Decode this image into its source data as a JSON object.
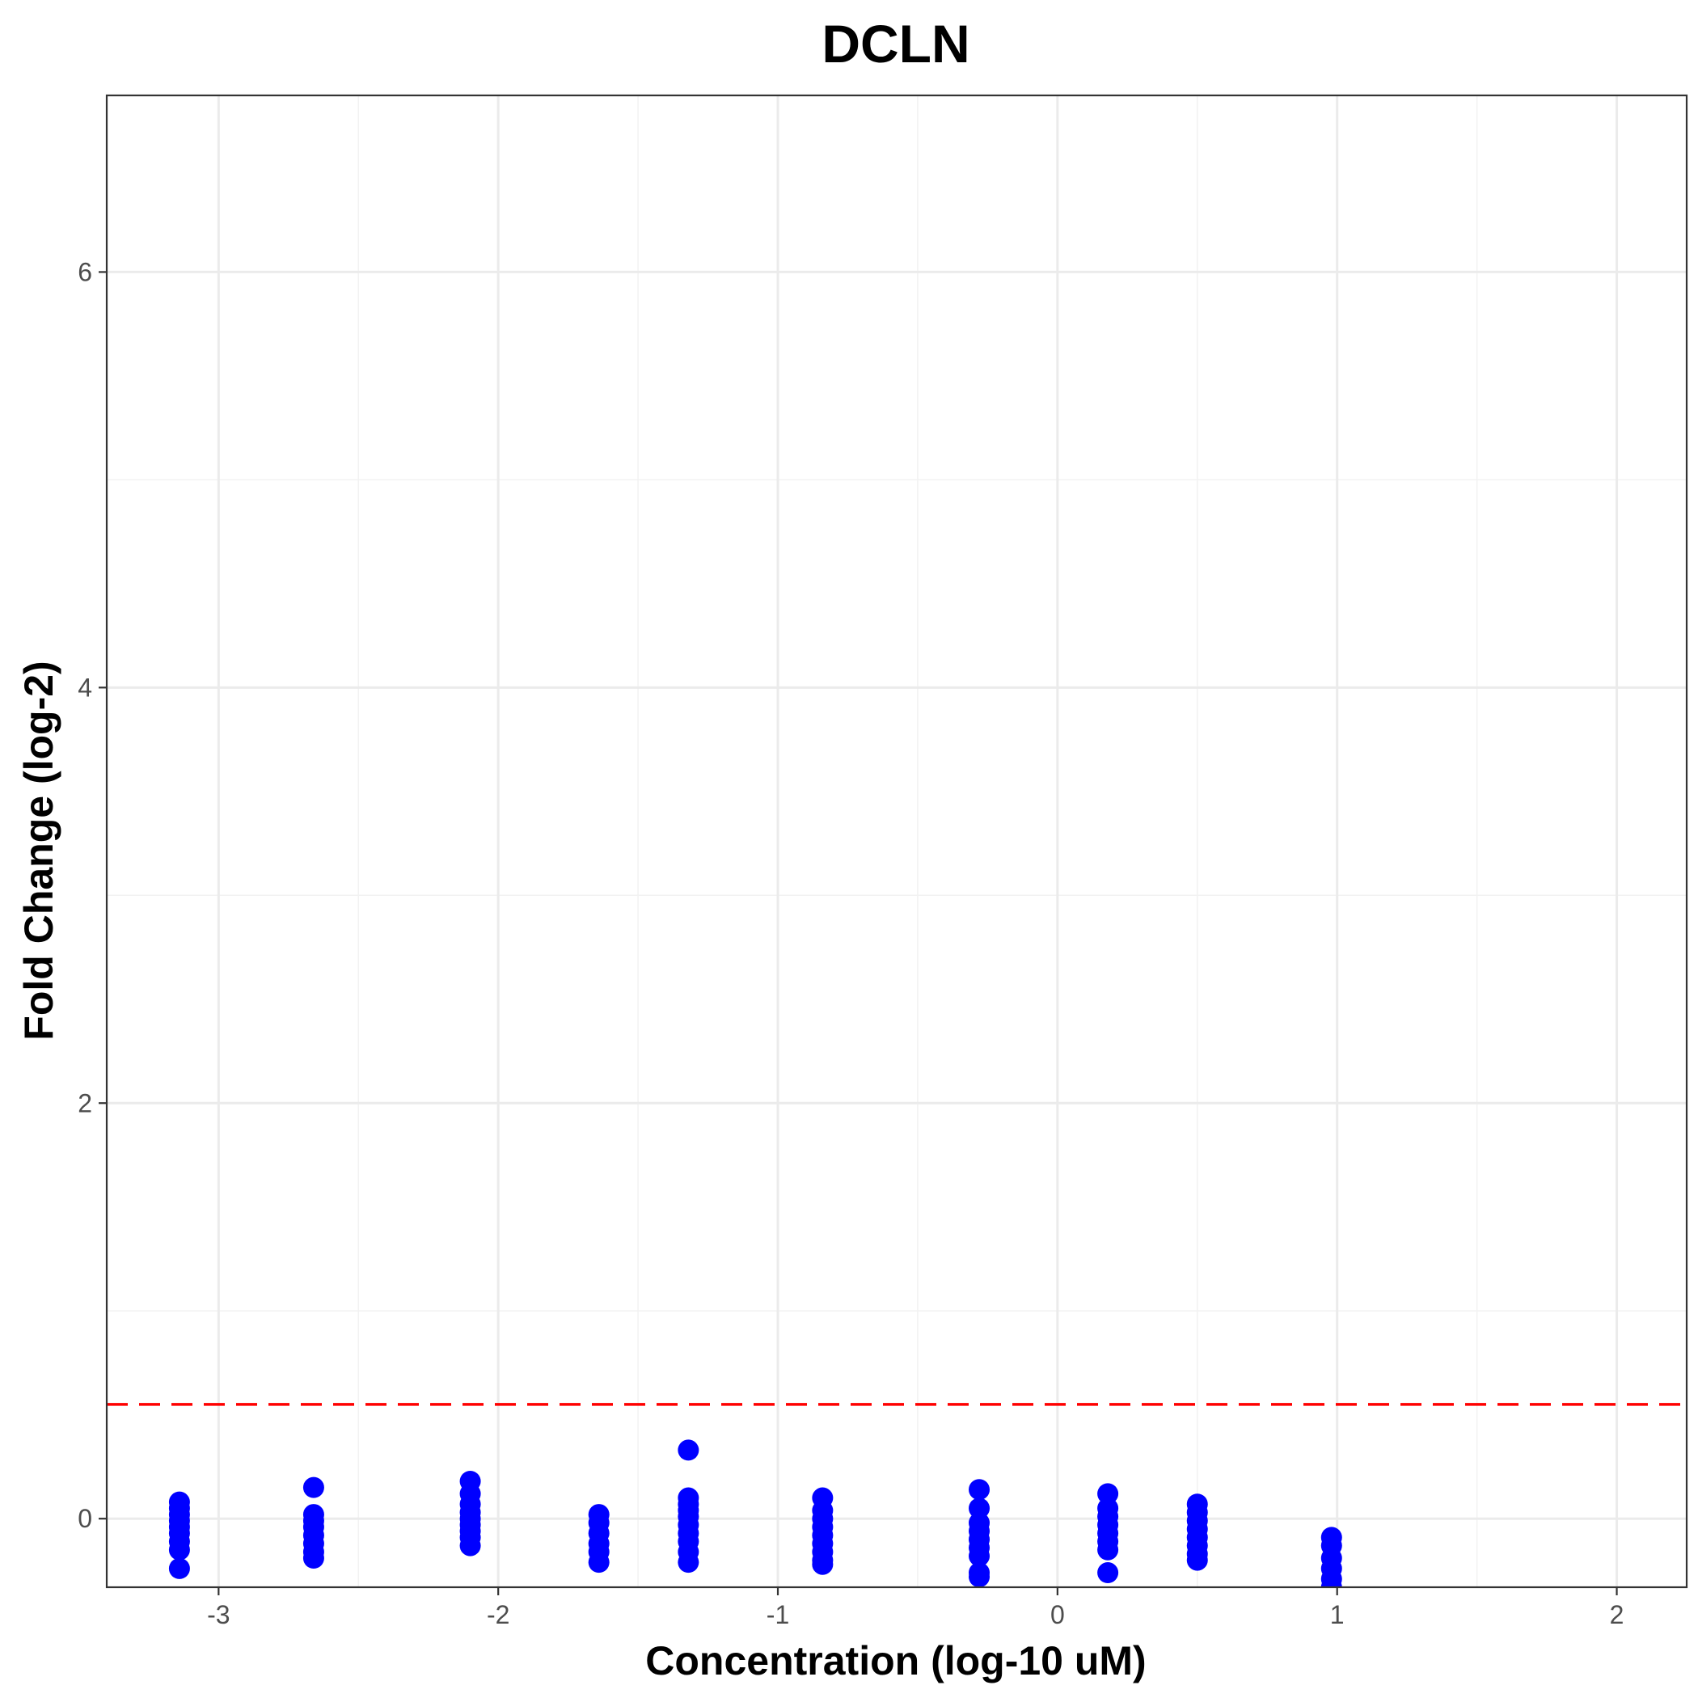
{
  "chart_data": {
    "type": "scatter",
    "title": "DCLN",
    "xlabel": "Concentration (log-10 uM)",
    "ylabel": "Fold Change (log-2)",
    "xlim": [
      -3.4,
      2.25
    ],
    "ylim": [
      -0.33,
      6.85
    ],
    "x_ticks": [
      -3,
      -2,
      -1,
      0,
      1,
      2
    ],
    "x_tick_labels": [
      "-3",
      "-2",
      "-1",
      "0",
      "1",
      "2"
    ],
    "y_ticks": [
      0,
      2,
      4,
      6
    ],
    "y_tick_labels": [
      "0",
      "2",
      "4",
      "6"
    ],
    "grid": true,
    "threshold": {
      "y": 0.55,
      "color": "#ff0000",
      "style": "dashed"
    },
    "point_color": "#0000ff",
    "series": [
      {
        "points": [
          [
            -3.14,
            0.08
          ],
          [
            -3.14,
            0.05
          ],
          [
            -3.14,
            0.02
          ],
          [
            -3.14,
            -0.01
          ],
          [
            -3.14,
            -0.04
          ],
          [
            -3.14,
            -0.07
          ],
          [
            -3.14,
            -0.11
          ],
          [
            -3.14,
            -0.15
          ],
          [
            -3.14,
            -0.24
          ],
          [
            -2.66,
            0.15
          ],
          [
            -2.66,
            0.02
          ],
          [
            -2.66,
            -0.01
          ],
          [
            -2.66,
            -0.04
          ],
          [
            -2.66,
            -0.08
          ],
          [
            -2.66,
            -0.12
          ],
          [
            -2.66,
            -0.16
          ],
          [
            -2.66,
            -0.19
          ],
          [
            -2.1,
            0.18
          ],
          [
            -2.1,
            0.12
          ],
          [
            -2.1,
            0.07
          ],
          [
            -2.1,
            0.03
          ],
          [
            -2.1,
            0.0
          ],
          [
            -2.1,
            -0.03
          ],
          [
            -2.1,
            -0.06
          ],
          [
            -2.1,
            -0.09
          ],
          [
            -2.1,
            -0.13
          ],
          [
            -1.64,
            0.02
          ],
          [
            -1.64,
            -0.02
          ],
          [
            -1.64,
            -0.07
          ],
          [
            -1.64,
            -0.12
          ],
          [
            -1.64,
            -0.16
          ],
          [
            -1.64,
            -0.21
          ],
          [
            -1.32,
            0.33
          ],
          [
            -1.32,
            0.1
          ],
          [
            -1.32,
            0.07
          ],
          [
            -1.32,
            0.04
          ],
          [
            -1.32,
            0.01
          ],
          [
            -1.32,
            -0.03
          ],
          [
            -1.32,
            -0.07
          ],
          [
            -1.32,
            -0.11
          ],
          [
            -1.32,
            -0.16
          ],
          [
            -1.32,
            -0.21
          ],
          [
            -0.84,
            0.1
          ],
          [
            -0.84,
            0.04
          ],
          [
            -0.84,
            0.0
          ],
          [
            -0.84,
            -0.04
          ],
          [
            -0.84,
            -0.08
          ],
          [
            -0.84,
            -0.12
          ],
          [
            -0.84,
            -0.16
          ],
          [
            -0.84,
            -0.2
          ],
          [
            -0.84,
            -0.22
          ],
          [
            -0.28,
            0.14
          ],
          [
            -0.28,
            0.05
          ],
          [
            -0.28,
            -0.02
          ],
          [
            -0.28,
            -0.06
          ],
          [
            -0.28,
            -0.1
          ],
          [
            -0.28,
            -0.14
          ],
          [
            -0.28,
            -0.18
          ],
          [
            -0.28,
            -0.26
          ],
          [
            -0.28,
            -0.28
          ],
          [
            0.18,
            0.12
          ],
          [
            0.18,
            0.05
          ],
          [
            0.18,
            0.01
          ],
          [
            0.18,
            -0.03
          ],
          [
            0.18,
            -0.07
          ],
          [
            0.18,
            -0.11
          ],
          [
            0.18,
            -0.15
          ],
          [
            0.18,
            -0.26
          ],
          [
            0.5,
            0.07
          ],
          [
            0.5,
            0.03
          ],
          [
            0.5,
            -0.01
          ],
          [
            0.5,
            -0.05
          ],
          [
            0.5,
            -0.09
          ],
          [
            0.5,
            -0.13
          ],
          [
            0.5,
            -0.17
          ],
          [
            0.5,
            -0.2
          ],
          [
            0.98,
            -0.09
          ],
          [
            0.98,
            -0.13
          ],
          [
            0.98,
            -0.19
          ],
          [
            0.98,
            -0.24
          ],
          [
            0.98,
            -0.29
          ],
          [
            0.98,
            -0.33
          ]
        ]
      }
    ]
  }
}
